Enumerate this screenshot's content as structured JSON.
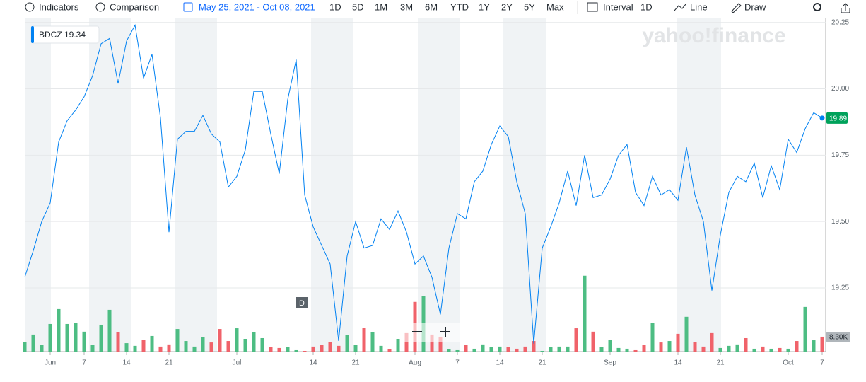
{
  "toolbar": {
    "indicators": "Indicators",
    "comparison": "Comparison",
    "date_range": "May 25, 2021 - Oct 08, 2021",
    "ranges": [
      "1D",
      "5D",
      "1M",
      "3M",
      "6M",
      "YTD",
      "1Y",
      "2Y",
      "5Y",
      "Max"
    ],
    "interval_label": "Interval",
    "interval": "1D",
    "chart_style": "Line",
    "draw": "Draw"
  },
  "watermark": "yahoo!finance",
  "dividend_marker": "D",
  "chart_data": {
    "type": "line",
    "categories": [
      null,
      null,
      null,
      "Jun",
      null,
      null,
      null,
      "7",
      null,
      null,
      null,
      null,
      "14",
      null,
      null,
      null,
      null,
      "21",
      null,
      null,
      null,
      null,
      null,
      null,
      null,
      "Jul",
      null,
      null,
      null,
      null,
      null,
      null,
      null,
      null,
      "14",
      null,
      null,
      null,
      null,
      "21",
      null,
      null,
      null,
      null,
      null,
      null,
      "Aug",
      null,
      null,
      null,
      null,
      "7",
      null,
      null,
      null,
      null,
      "14",
      null,
      null,
      null,
      null,
      "21",
      null,
      null,
      null,
      null,
      null,
      null,
      null,
      "Sep",
      null,
      null,
      null,
      null,
      null,
      null,
      null,
      "14",
      null,
      null,
      null,
      null,
      "21",
      null,
      null,
      null,
      null,
      null,
      null,
      null,
      "Oct",
      null,
      null,
      null,
      "7"
    ],
    "series": [
      {
        "name": "BDCZ",
        "color": "#0081f2",
        "values": [
          19.29,
          19.39,
          19.5,
          19.57,
          19.8,
          19.88,
          19.92,
          19.97,
          20.05,
          20.17,
          20.19,
          20.02,
          20.18,
          20.24,
          20.04,
          20.13,
          19.89,
          19.46,
          19.81,
          19.84,
          19.84,
          19.9,
          19.83,
          19.8,
          19.63,
          19.67,
          19.77,
          19.99,
          19.99,
          19.83,
          19.68,
          19.96,
          20.11,
          19.6,
          19.48,
          19.41,
          19.34,
          19.05,
          19.37,
          19.5,
          19.4,
          19.41,
          19.51,
          19.47,
          19.54,
          19.46,
          19.34,
          19.37,
          19.29,
          19.15,
          19.4,
          19.53,
          19.51,
          19.65,
          19.69,
          19.79,
          19.86,
          19.82,
          19.65,
          19.53,
          19.04,
          19.4,
          19.48,
          19.57,
          19.69,
          19.56,
          19.75,
          19.59,
          19.6,
          19.66,
          19.75,
          19.79,
          19.61,
          19.56,
          19.67,
          19.6,
          19.62,
          19.58,
          19.78,
          19.6,
          19.5,
          19.24,
          19.45,
          19.61,
          19.67,
          19.65,
          19.72,
          19.59,
          19.71,
          19.62,
          19.81,
          19.76,
          19.85,
          19.91,
          19.89
        ]
      }
    ],
    "legend_value": 19.34,
    "ylim": [
      19.01,
      20.26
    ],
    "yticks": [
      {
        "value": 19.25,
        "label": "19.25"
      },
      {
        "value": 19.5,
        "label": "19.50"
      },
      19.75,
      {
        "value": 20,
        "label": "20.00"
      },
      20.25
    ],
    "grid": true,
    "volume": {
      "up_color": "#4dbd83",
      "down_color": "#f0626a",
      "lim": [
        0,
        185000
      ],
      "last_label": "8.30K",
      "values": [
        5500,
        9500,
        3600,
        15400,
        23700,
        15400,
        15800,
        11100,
        3600,
        15000,
        23300,
        10700,
        4700,
        3200,
        6700,
        8700,
        2800,
        4000,
        12600,
        5900,
        2800,
        7900,
        5100,
        12600,
        5900,
        13000,
        7100,
        10700,
        7500,
        2400,
        2000,
        2400,
        800,
        400,
        2800,
        3600,
        5500,
        3200,
        9100,
        3600,
        13400,
        10700,
        3200,
        1200,
        7100,
        10300,
        27700,
        30800,
        9500,
        8300,
        1200,
        800,
        3600,
        1600,
        4000,
        2400,
        2800,
        2400,
        1600,
        2800,
        5900,
        400,
        2400,
        2800,
        2800,
        13000,
        42300,
        11100,
        2400,
        6700,
        2000,
        1600,
        800,
        3600,
        15800,
        5100,
        5900,
        9900,
        19400,
        5500,
        2800,
        10300,
        2000,
        3200,
        4000,
        7500,
        1600,
        2800,
        1600,
        2000,
        1600,
        5900,
        24900,
        6300,
        8300
      ]
    }
  }
}
